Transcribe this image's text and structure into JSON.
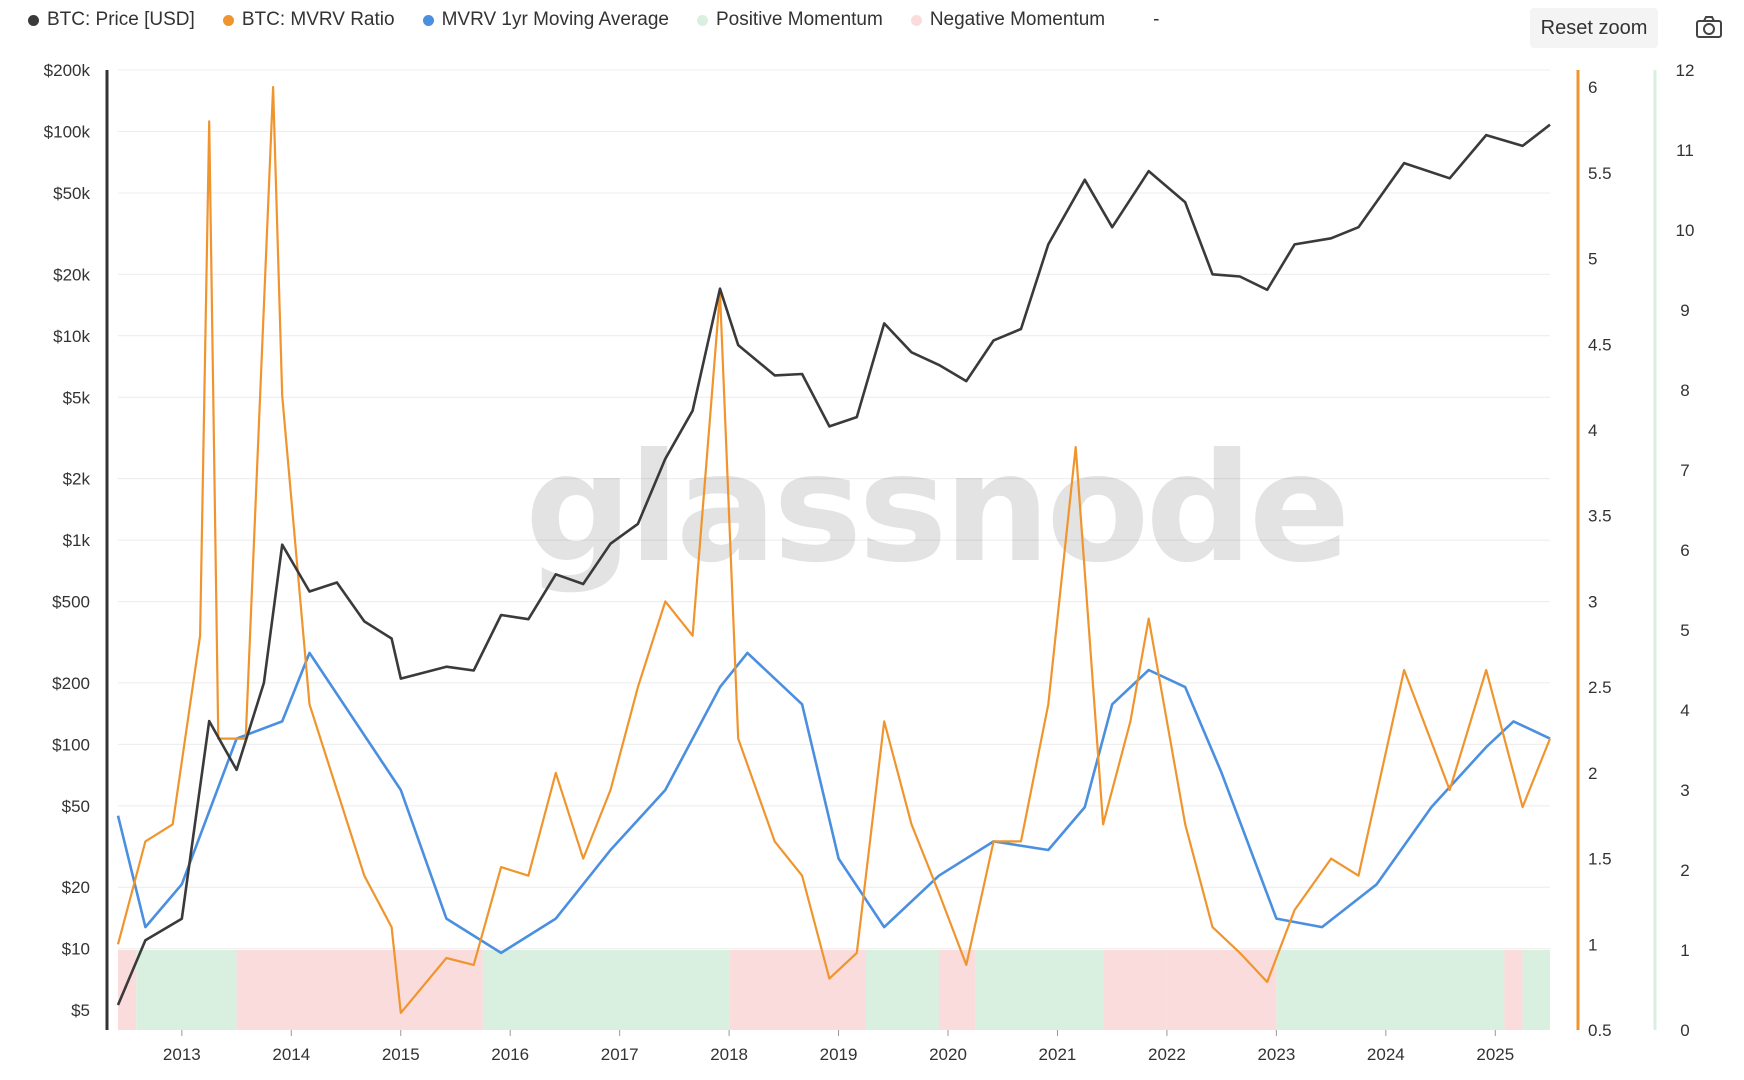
{
  "legend": {
    "items": [
      {
        "label": "BTC: Price [USD]",
        "color": "#3a3a3a"
      },
      {
        "label": "BTC: MVRV Ratio",
        "color": "#f0952e"
      },
      {
        "label": "MVRV 1yr Moving Average",
        "color": "#4a8fe0"
      },
      {
        "label": "Positive Momentum",
        "color": "#d9efdf"
      },
      {
        "label": "Negative Momentum",
        "color": "#fbdcdc"
      }
    ],
    "trailing": "-"
  },
  "toolbar": {
    "reset_zoom": "Reset zoom",
    "camera_icon": "camera-icon"
  },
  "watermark": "glassnode",
  "chart_data": {
    "type": "line",
    "x_range": [
      "2012-06",
      "2025-07"
    ],
    "x_ticks": [
      "2013",
      "2014",
      "2015",
      "2016",
      "2017",
      "2018",
      "2019",
      "2020",
      "2021",
      "2022",
      "2023",
      "2024",
      "2025"
    ],
    "axes": {
      "left": {
        "label": "",
        "scale": "log",
        "range": [
          4,
          200000
        ],
        "ticks": [
          "$5",
          "$10",
          "$20",
          "$50",
          "$100",
          "$200",
          "$500",
          "$1k",
          "$2k",
          "$5k",
          "$10k",
          "$20k",
          "$50k",
          "$100k",
          "$200k"
        ]
      },
      "right1": {
        "label": "",
        "scale": "linear",
        "range": [
          0.5,
          6.1
        ],
        "ticks": [
          "0.5",
          "1",
          "1.5",
          "2",
          "2.5",
          "3",
          "3.5",
          "4",
          "4.5",
          "5",
          "5.5",
          "6"
        ]
      },
      "right2": {
        "label": "",
        "scale": "linear",
        "range": [
          0,
          12
        ],
        "ticks": [
          "0",
          "1",
          "2",
          "3",
          "4",
          "5",
          "6",
          "7",
          "8",
          "9",
          "10",
          "11",
          "12"
        ]
      }
    },
    "series": [
      {
        "name": "BTC: Price [USD]",
        "axis": "left",
        "color": "#3a3a3a",
        "points": [
          [
            "2012-06",
            5.3
          ],
          [
            "2012-09",
            11
          ],
          [
            "2013-01",
            14
          ],
          [
            "2013-04",
            130
          ],
          [
            "2013-07",
            75
          ],
          [
            "2013-10",
            200
          ],
          [
            "2013-12",
            950
          ],
          [
            "2014-03",
            560
          ],
          [
            "2014-06",
            620
          ],
          [
            "2014-09",
            400
          ],
          [
            "2014-12",
            330
          ],
          [
            "2015-01",
            210
          ],
          [
            "2015-06",
            240
          ],
          [
            "2015-09",
            230
          ],
          [
            "2015-12",
            430
          ],
          [
            "2016-03",
            410
          ],
          [
            "2016-06",
            680
          ],
          [
            "2016-09",
            610
          ],
          [
            "2016-12",
            960
          ],
          [
            "2017-03",
            1200
          ],
          [
            "2017-06",
            2500
          ],
          [
            "2017-09",
            4300
          ],
          [
            "2017-12",
            17000
          ],
          [
            "2018-02",
            9000
          ],
          [
            "2018-06",
            6400
          ],
          [
            "2018-09",
            6500
          ],
          [
            "2018-12",
            3600
          ],
          [
            "2019-03",
            4000
          ],
          [
            "2019-06",
            11500
          ],
          [
            "2019-09",
            8300
          ],
          [
            "2019-12",
            7200
          ],
          [
            "2020-03",
            6000
          ],
          [
            "2020-06",
            9500
          ],
          [
            "2020-09",
            10800
          ],
          [
            "2020-12",
            28000
          ],
          [
            "2021-04",
            58000
          ],
          [
            "2021-07",
            34000
          ],
          [
            "2021-11",
            64000
          ],
          [
            "2022-03",
            45000
          ],
          [
            "2022-06",
            20000
          ],
          [
            "2022-09",
            19500
          ],
          [
            "2022-12",
            16800
          ],
          [
            "2023-03",
            28000
          ],
          [
            "2023-07",
            30000
          ],
          [
            "2023-10",
            34000
          ],
          [
            "2024-03",
            70000
          ],
          [
            "2024-08",
            59000
          ],
          [
            "2024-12",
            96000
          ],
          [
            "2025-04",
            85000
          ],
          [
            "2025-07",
            108000
          ]
        ]
      },
      {
        "name": "BTC: MVRV Ratio",
        "axis": "right1",
        "color": "#f0952e",
        "points": [
          [
            "2012-06",
            1.0
          ],
          [
            "2012-09",
            1.6
          ],
          [
            "2012-12",
            1.7
          ],
          [
            "2013-03",
            2.8
          ],
          [
            "2013-04",
            5.8
          ],
          [
            "2013-05",
            2.2
          ],
          [
            "2013-08",
            2.2
          ],
          [
            "2013-11",
            6.0
          ],
          [
            "2013-12",
            4.2
          ],
          [
            "2014-03",
            2.4
          ],
          [
            "2014-06",
            1.9
          ],
          [
            "2014-09",
            1.4
          ],
          [
            "2014-12",
            1.1
          ],
          [
            "2015-01",
            0.6
          ],
          [
            "2015-06",
            0.92
          ],
          [
            "2015-09",
            0.88
          ],
          [
            "2015-12",
            1.45
          ],
          [
            "2016-03",
            1.4
          ],
          [
            "2016-06",
            2.0
          ],
          [
            "2016-09",
            1.5
          ],
          [
            "2016-12",
            1.9
          ],
          [
            "2017-03",
            2.5
          ],
          [
            "2017-06",
            3.0
          ],
          [
            "2017-09",
            2.8
          ],
          [
            "2017-12",
            4.8
          ],
          [
            "2018-02",
            2.2
          ],
          [
            "2018-06",
            1.6
          ],
          [
            "2018-09",
            1.4
          ],
          [
            "2018-12",
            0.8
          ],
          [
            "2019-03",
            0.95
          ],
          [
            "2019-06",
            2.3
          ],
          [
            "2019-09",
            1.7
          ],
          [
            "2019-12",
            1.3
          ],
          [
            "2020-03",
            0.88
          ],
          [
            "2020-06",
            1.6
          ],
          [
            "2020-09",
            1.6
          ],
          [
            "2020-12",
            2.4
          ],
          [
            "2021-03",
            3.9
          ],
          [
            "2021-06",
            1.7
          ],
          [
            "2021-09",
            2.3
          ],
          [
            "2021-11",
            2.9
          ],
          [
            "2022-03",
            1.7
          ],
          [
            "2022-06",
            1.1
          ],
          [
            "2022-09",
            0.95
          ],
          [
            "2022-12",
            0.78
          ],
          [
            "2023-03",
            1.2
          ],
          [
            "2023-07",
            1.5
          ],
          [
            "2023-10",
            1.4
          ],
          [
            "2024-03",
            2.6
          ],
          [
            "2024-08",
            1.9
          ],
          [
            "2024-12",
            2.6
          ],
          [
            "2025-04",
            1.8
          ],
          [
            "2025-07",
            2.2
          ]
        ]
      },
      {
        "name": "MVRV 1yr Moving Average",
        "axis": "right1",
        "color": "#4a8fe0",
        "points": [
          [
            "2012-06",
            1.75
          ],
          [
            "2012-09",
            1.1
          ],
          [
            "2013-01",
            1.35
          ],
          [
            "2013-07",
            2.2
          ],
          [
            "2013-12",
            2.3
          ],
          [
            "2014-03",
            2.7
          ],
          [
            "2014-08",
            2.3
          ],
          [
            "2015-01",
            1.9
          ],
          [
            "2015-06",
            1.15
          ],
          [
            "2015-12",
            0.95
          ],
          [
            "2016-06",
            1.15
          ],
          [
            "2016-12",
            1.55
          ],
          [
            "2017-06",
            1.9
          ],
          [
            "2017-12",
            2.5
          ],
          [
            "2018-03",
            2.7
          ],
          [
            "2018-09",
            2.4
          ],
          [
            "2019-01",
            1.5
          ],
          [
            "2019-06",
            1.1
          ],
          [
            "2019-12",
            1.4
          ],
          [
            "2020-06",
            1.6
          ],
          [
            "2020-12",
            1.55
          ],
          [
            "2021-04",
            1.8
          ],
          [
            "2021-07",
            2.4
          ],
          [
            "2021-11",
            2.6
          ],
          [
            "2022-03",
            2.5
          ],
          [
            "2022-07",
            2.0
          ],
          [
            "2023-01",
            1.15
          ],
          [
            "2023-06",
            1.1
          ],
          [
            "2023-12",
            1.35
          ],
          [
            "2024-06",
            1.8
          ],
          [
            "2024-12",
            2.15
          ],
          [
            "2025-03",
            2.3
          ],
          [
            "2025-07",
            2.2
          ]
        ]
      }
    ],
    "momentum_bands": {
      "axis": "right2",
      "range": [
        0,
        1
      ],
      "segments": [
        {
          "from": "2012-06",
          "to": "2012-08",
          "state": "negative"
        },
        {
          "from": "2012-08",
          "to": "2013-07",
          "state": "positive"
        },
        {
          "from": "2013-07",
          "to": "2015-10",
          "state": "negative"
        },
        {
          "from": "2015-10",
          "to": "2018-01",
          "state": "positive"
        },
        {
          "from": "2018-01",
          "to": "2019-04",
          "state": "negative"
        },
        {
          "from": "2019-04",
          "to": "2019-12",
          "state": "positive"
        },
        {
          "from": "2019-12",
          "to": "2020-04",
          "state": "negative"
        },
        {
          "from": "2020-04",
          "to": "2021-06",
          "state": "positive"
        },
        {
          "from": "2021-06",
          "to": "2022-01",
          "state": "negative"
        },
        {
          "from": "2022-01",
          "to": "2023-01",
          "state": "negative"
        },
        {
          "from": "2023-01",
          "to": "2025-02",
          "state": "positive"
        },
        {
          "from": "2025-02",
          "to": "2025-04",
          "state": "negative"
        },
        {
          "from": "2025-04",
          "to": "2025-07",
          "state": "positive"
        }
      ]
    },
    "grid": true
  }
}
